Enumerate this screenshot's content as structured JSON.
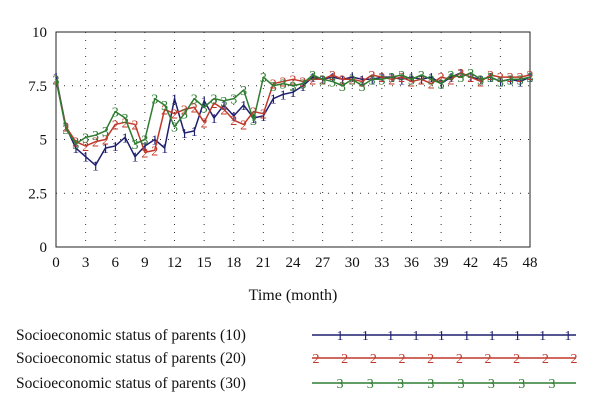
{
  "chart_data": {
    "type": "line",
    "title": "",
    "xlabel": "Time (month)",
    "ylabel": "",
    "xlim": [
      0,
      48
    ],
    "ylim": [
      0,
      10
    ],
    "x_ticks": [
      0,
      3,
      6,
      9,
      12,
      15,
      18,
      21,
      24,
      27,
      30,
      33,
      36,
      39,
      42,
      45,
      48
    ],
    "y_ticks": [
      0,
      2.5,
      5,
      7.5,
      10
    ],
    "y_tick_labels": [
      "0",
      "2.5",
      "5",
      "7.5",
      "10"
    ],
    "grid": "dotted",
    "legend_position": "bottom",
    "series": [
      {
        "name": "Socioeconomic status of parents (10)",
        "marker": "1",
        "color": "#1f1f6e",
        "x": [
          0,
          1,
          2,
          3,
          4,
          5,
          6,
          7,
          8,
          9,
          10,
          11,
          12,
          13,
          14,
          15,
          16,
          17,
          18,
          19,
          20,
          21,
          22,
          23,
          24,
          25,
          26,
          27,
          28,
          29,
          30,
          31,
          32,
          33,
          34,
          35,
          36,
          37,
          38,
          39,
          40,
          41,
          42,
          43,
          44,
          45,
          46,
          47,
          48
        ],
        "y": [
          7.9,
          5.6,
          4.6,
          4.2,
          3.8,
          4.6,
          4.7,
          5.1,
          4.2,
          4.7,
          5.0,
          4.6,
          6.9,
          5.3,
          5.4,
          6.8,
          6.0,
          6.6,
          6.1,
          6.6,
          6.0,
          6.1,
          6.9,
          7.1,
          7.2,
          7.5,
          7.9,
          7.8,
          7.9,
          7.8,
          7.9,
          7.8,
          7.8,
          7.9,
          7.9,
          7.8,
          7.9,
          7.8,
          7.9,
          7.6,
          7.9,
          8.1,
          7.9,
          7.8,
          7.9,
          7.7,
          7.8,
          7.7,
          7.9
        ]
      },
      {
        "name": "Socioeconomic status of parents (20)",
        "marker": "2",
        "color": "#c0392b",
        "x": [
          0,
          1,
          2,
          3,
          4,
          5,
          6,
          7,
          8,
          9,
          10,
          11,
          12,
          13,
          14,
          15,
          16,
          17,
          18,
          19,
          20,
          21,
          22,
          23,
          24,
          25,
          26,
          27,
          28,
          29,
          30,
          31,
          32,
          33,
          34,
          35,
          36,
          37,
          38,
          39,
          40,
          41,
          42,
          43,
          44,
          45,
          46,
          47,
          48
        ],
        "y": [
          7.8,
          5.6,
          4.9,
          4.7,
          4.9,
          5.0,
          5.7,
          5.8,
          5.7,
          4.4,
          4.5,
          6.4,
          6.2,
          6.4,
          6.5,
          5.8,
          6.7,
          6.4,
          5.9,
          5.7,
          6.3,
          6.2,
          7.6,
          7.7,
          7.8,
          7.7,
          7.8,
          7.8,
          8.0,
          7.8,
          7.8,
          7.7,
          8.0,
          7.9,
          7.8,
          7.9,
          7.7,
          7.8,
          7.6,
          7.9,
          7.8,
          8.1,
          7.9,
          7.7,
          8.0,
          7.9,
          7.9,
          7.9,
          8.0
        ]
      },
      {
        "name": "Socioeconomic status of parents (30)",
        "marker": "3",
        "color": "#2e7d32",
        "x": [
          0,
          1,
          2,
          3,
          4,
          5,
          6,
          7,
          8,
          9,
          10,
          11,
          12,
          13,
          14,
          15,
          16,
          17,
          18,
          19,
          20,
          21,
          22,
          23,
          24,
          25,
          26,
          27,
          28,
          29,
          30,
          31,
          32,
          33,
          34,
          35,
          36,
          37,
          38,
          39,
          40,
          41,
          42,
          43,
          44,
          45,
          46,
          47,
          48
        ],
        "y": [
          7.8,
          5.5,
          4.8,
          5.1,
          5.2,
          5.4,
          6.3,
          6.0,
          4.8,
          5.0,
          6.9,
          6.6,
          5.6,
          6.2,
          6.9,
          6.5,
          6.9,
          6.8,
          6.9,
          7.3,
          5.9,
          7.9,
          7.5,
          7.6,
          7.5,
          7.6,
          8.0,
          7.8,
          7.7,
          7.5,
          7.8,
          7.5,
          7.8,
          7.8,
          7.9,
          8.0,
          7.8,
          8.0,
          7.8,
          7.6,
          8.0,
          7.9,
          8.1,
          7.8,
          7.9,
          7.7,
          7.8,
          7.8,
          7.9
        ]
      }
    ]
  }
}
